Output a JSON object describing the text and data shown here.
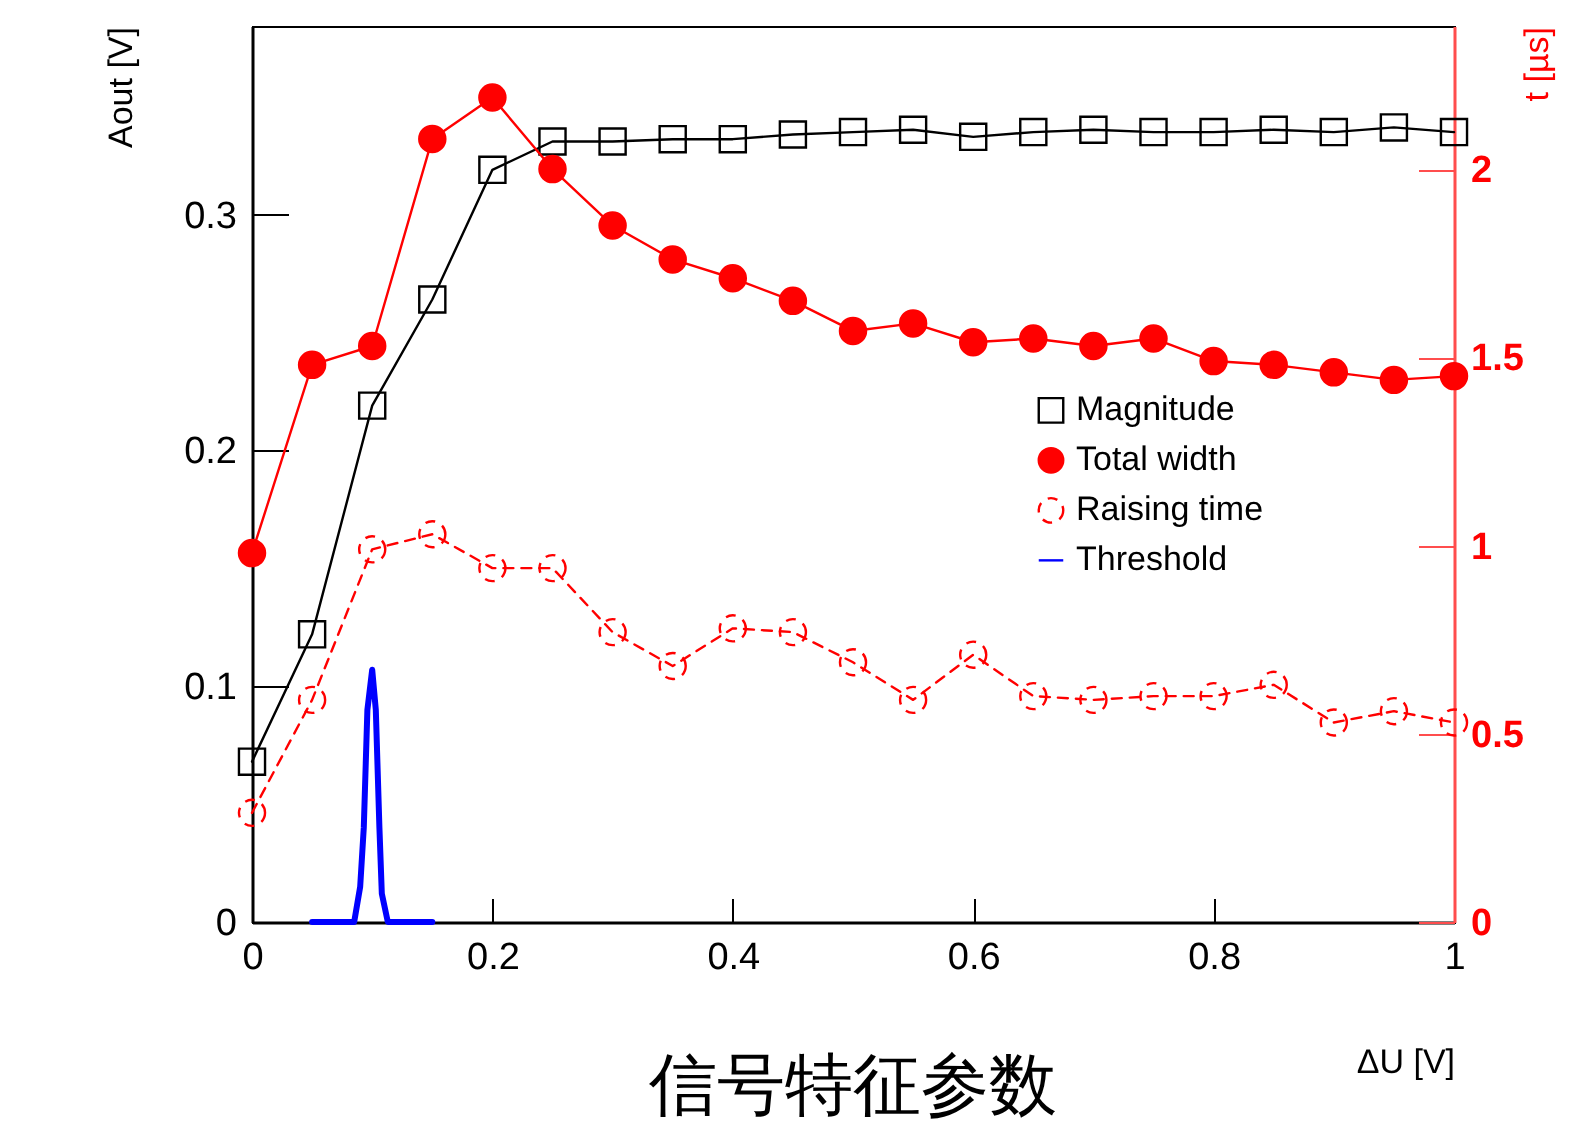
{
  "chart_data": {
    "type": "line",
    "title": "信号特征参数",
    "xlabel": "ΔU [V]",
    "ylabel": "Aout [V]",
    "y2label": "t [µs]",
    "x": [
      0,
      0.05,
      0.1,
      0.15,
      0.2,
      0.25,
      0.3,
      0.35,
      0.4,
      0.45,
      0.5,
      0.55,
      0.6,
      0.65,
      0.7,
      0.75,
      0.8,
      0.85,
      0.9,
      0.95,
      1
    ],
    "series": [
      {
        "name": "Magnitude",
        "color": "#000000",
        "marker": "square",
        "line_style": "solid",
        "values": [
          0.068,
          0.122,
          0.219,
          0.264,
          0.319,
          0.331,
          0.331,
          0.332,
          0.332,
          0.334,
          0.335,
          0.336,
          0.333,
          0.335,
          0.336,
          0.335,
          0.335,
          0.336,
          0.335,
          0.337,
          0.335
        ]
      },
      {
        "name": "Total width",
        "color": "#ff0000",
        "marker": "circle",
        "line_style": "solid",
        "axis": "y2",
        "values": [
          0.98,
          1.48,
          1.53,
          2.08,
          2.19,
          2.0,
          1.85,
          1.76,
          1.71,
          1.65,
          1.57,
          1.59,
          1.54,
          1.55,
          1.53,
          1.55,
          1.49,
          1.48,
          1.46,
          1.44,
          1.45
        ]
      },
      {
        "name": "Raising time",
        "color": "#ff0000",
        "marker": "circle",
        "line_style": "dashed",
        "axis": "y2",
        "values": [
          0.29,
          0.59,
          0.99,
          1.03,
          0.94,
          0.94,
          0.77,
          0.68,
          0.78,
          0.77,
          0.69,
          0.59,
          0.71,
          0.6,
          0.59,
          0.6,
          0.6,
          0.63,
          0.53,
          0.56,
          0.53
        ]
      },
      {
        "name": "Threshold",
        "color": "#0000ff",
        "marker": "none",
        "line_style": "solid",
        "x": [
          0.05,
          0.085,
          0.09,
          0.093,
          0.096,
          0.1,
          0.103,
          0.106,
          0.108,
          0.113,
          0.15
        ],
        "values": [
          0,
          0,
          0.015,
          0.04,
          0.09,
          0.107,
          0.09,
          0.04,
          0.012,
          0,
          0
        ]
      }
    ],
    "xlim": [
      0,
      1
    ],
    "xticks": [
      0,
      0.2,
      0.4,
      0.6,
      0.8,
      1
    ],
    "ylim": [
      0,
      0.38
    ],
    "yticks": [
      0,
      0.1,
      0.2,
      0.3
    ],
    "y2lim": [
      0,
      2.38
    ],
    "y2ticks": [
      0,
      0.5,
      1,
      1.5,
      2
    ],
    "grid": false,
    "legend": "right"
  }
}
